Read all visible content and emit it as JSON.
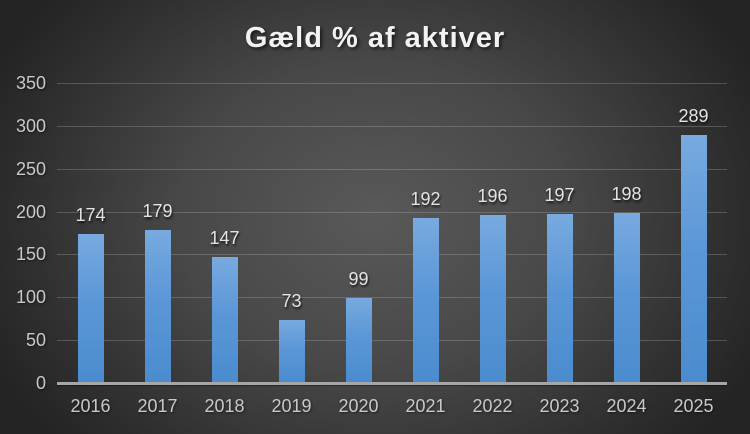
{
  "chart_data": {
    "type": "bar",
    "title": "Gæld % af aktiver",
    "categories": [
      "2016",
      "2017",
      "2018",
      "2019",
      "2020",
      "2021",
      "2022",
      "2023",
      "2024",
      "2025"
    ],
    "values": [
      174,
      179,
      147,
      73,
      99,
      192,
      196,
      197,
      198,
      289
    ],
    "xlabel": "",
    "ylabel": "",
    "ylim": [
      0,
      350
    ],
    "yticks": [
      0,
      50,
      100,
      150,
      200,
      250,
      300,
      350
    ],
    "grid": true,
    "legend": false,
    "data_labels": true,
    "colors": {
      "bar_top": "#78aadf",
      "bar_bottom": "#4a8cce",
      "background_center": "#595959",
      "background_edge": "#232323",
      "gridline": "#6e6e6e",
      "axis_line": "#a6a6a6",
      "title_text": "#f2f2f2",
      "tick_text": "#c9c9c9",
      "data_label_text": "#e3e3e3"
    }
  }
}
